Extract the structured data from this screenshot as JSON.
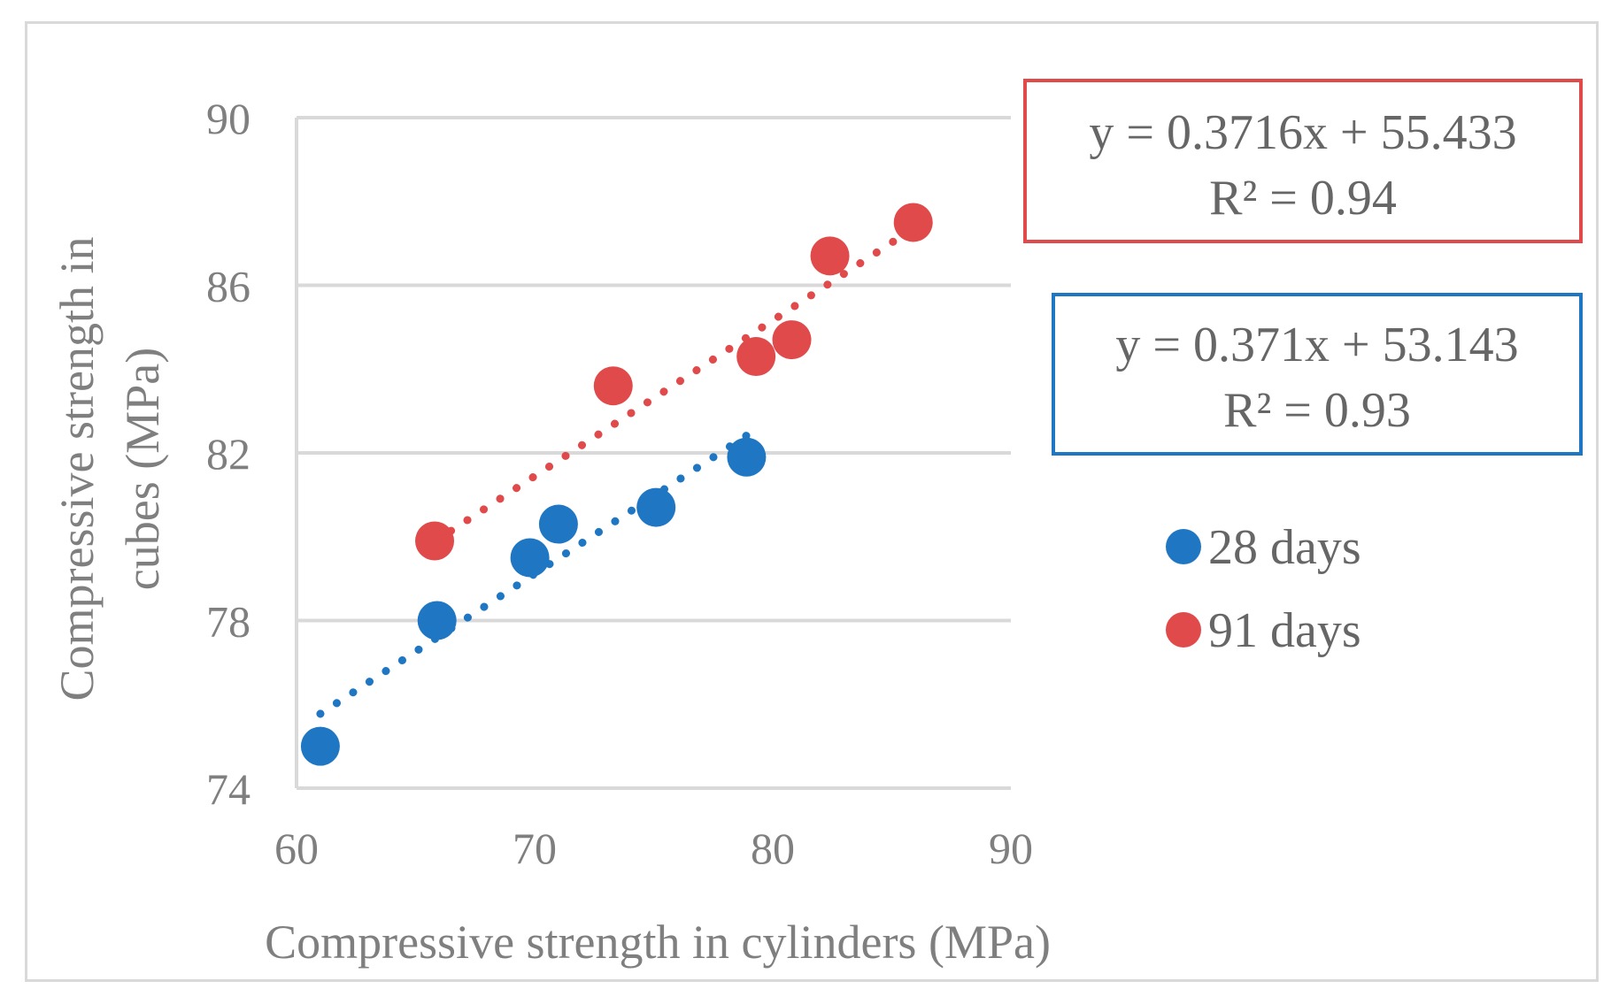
{
  "chart_data": {
    "type": "scatter",
    "title": "",
    "xlabel": "Compressive strength in cylinders (MPa)",
    "ylabel_lines": [
      "Compressive strength in",
      "cubes (MPa)"
    ],
    "xlim": [
      60,
      90
    ],
    "ylim": [
      74,
      90
    ],
    "xticks": [
      "60",
      "70",
      "80",
      "90"
    ],
    "yticks": [
      "74",
      "78",
      "82",
      "86",
      "90"
    ],
    "grid": "horizontal",
    "legend_position": "right",
    "series": [
      {
        "name": "28 days",
        "color": "#1f77c4",
        "points": [
          {
            "x": 61.0,
            "y": 75.0
          },
          {
            "x": 65.9,
            "y": 78.0
          },
          {
            "x": 69.8,
            "y": 79.5
          },
          {
            "x": 71.0,
            "y": 80.3
          },
          {
            "x": 75.1,
            "y": 80.7
          },
          {
            "x": 78.9,
            "y": 81.9
          }
        ],
        "trendline": {
          "slope": 0.371,
          "intercept": 53.143,
          "x_range": [
            61.0,
            78.9
          ],
          "equation": "y = 0.371x + 53.143",
          "r2": "R² = 0.93"
        }
      },
      {
        "name": "91 days",
        "color": "#e04a4a",
        "points": [
          {
            "x": 65.8,
            "y": 79.9
          },
          {
            "x": 73.3,
            "y": 83.6
          },
          {
            "x": 79.3,
            "y": 84.3
          },
          {
            "x": 80.8,
            "y": 84.7
          },
          {
            "x": 82.4,
            "y": 86.7
          },
          {
            "x": 85.9,
            "y": 87.5
          }
        ],
        "trendline": {
          "slope": 0.3716,
          "intercept": 55.433,
          "x_range": [
            65.8,
            85.9
          ],
          "equation": "y = 0.3716x + 55.433",
          "r2": "R² = 0.94"
        }
      }
    ]
  }
}
